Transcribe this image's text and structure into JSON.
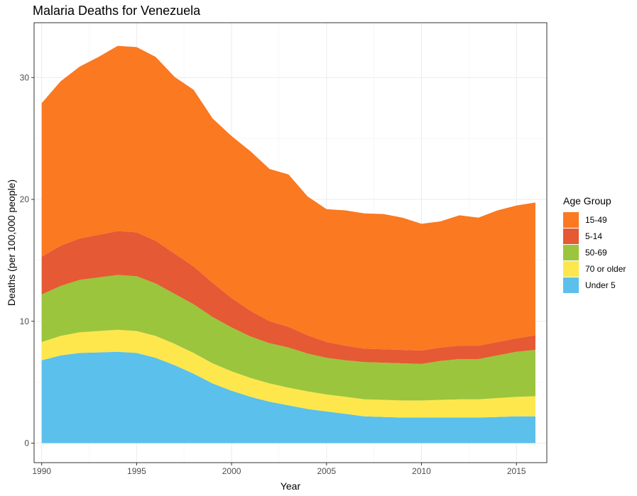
{
  "chart_data": {
    "type": "area",
    "stacked": true,
    "title": "Malaria Deaths for Venezuela",
    "xlabel": "Year",
    "ylabel": "Deaths (per 100,000 people)",
    "xlim": [
      1989.6,
      2016.6
    ],
    "ylim": [
      -1.6,
      34.5
    ],
    "x_ticks": [
      1990,
      1995,
      2000,
      2005,
      2010,
      2015
    ],
    "y_ticks": [
      0,
      10,
      20,
      30
    ],
    "grid": true,
    "legend_title": "Age Group",
    "legend_position": "right",
    "x": [
      1990,
      1991,
      1992,
      1993,
      1994,
      1995,
      1996,
      1997,
      1998,
      1999,
      2000,
      2001,
      2002,
      2003,
      2004,
      2005,
      2006,
      2007,
      2008,
      2009,
      2010,
      2011,
      2012,
      2013,
      2014,
      2015,
      2016
    ],
    "series": [
      {
        "name": "Under 5",
        "color": "#5bc0eb",
        "values": [
          6.8,
          7.2,
          7.4,
          7.45,
          7.5,
          7.4,
          7.0,
          6.4,
          5.7,
          4.9,
          4.3,
          3.8,
          3.4,
          3.1,
          2.8,
          2.6,
          2.4,
          2.2,
          2.15,
          2.1,
          2.1,
          2.1,
          2.1,
          2.1,
          2.15,
          2.2,
          2.2
        ]
      },
      {
        "name": "70 or older",
        "color": "#fde74c",
        "values": [
          1.5,
          1.6,
          1.7,
          1.75,
          1.8,
          1.8,
          1.8,
          1.75,
          1.7,
          1.65,
          1.6,
          1.55,
          1.5,
          1.45,
          1.45,
          1.4,
          1.4,
          1.4,
          1.4,
          1.4,
          1.4,
          1.45,
          1.5,
          1.5,
          1.55,
          1.6,
          1.65
        ]
      },
      {
        "name": "50-69",
        "color": "#9bc53d",
        "values": [
          3.9,
          4.1,
          4.3,
          4.4,
          4.5,
          4.5,
          4.3,
          4.1,
          4.0,
          3.8,
          3.6,
          3.4,
          3.3,
          3.3,
          3.1,
          3.0,
          3.0,
          3.05,
          3.05,
          3.05,
          3.0,
          3.2,
          3.3,
          3.3,
          3.5,
          3.7,
          3.8
        ]
      },
      {
        "name": "5-14",
        "color": "#e55934",
        "values": [
          3.1,
          3.3,
          3.4,
          3.5,
          3.6,
          3.6,
          3.5,
          3.3,
          3.1,
          2.8,
          2.4,
          2.1,
          1.8,
          1.7,
          1.5,
          1.3,
          1.2,
          1.1,
          1.1,
          1.1,
          1.1,
          1.1,
          1.1,
          1.1,
          1.1,
          1.1,
          1.2
        ]
      },
      {
        "name": "15-49",
        "color": "#fa7921",
        "values": [
          12.6,
          13.5,
          14.1,
          14.6,
          15.2,
          15.2,
          15.1,
          14.5,
          14.5,
          13.5,
          13.3,
          13.1,
          12.5,
          12.5,
          11.4,
          10.9,
          11.1,
          11.1,
          11.1,
          10.85,
          10.4,
          10.35,
          10.7,
          10.5,
          10.8,
          10.9,
          10.9
        ]
      }
    ],
    "legend_order": [
      "15-49",
      "5-14",
      "50-69",
      "70 or older",
      "Under 5"
    ]
  }
}
